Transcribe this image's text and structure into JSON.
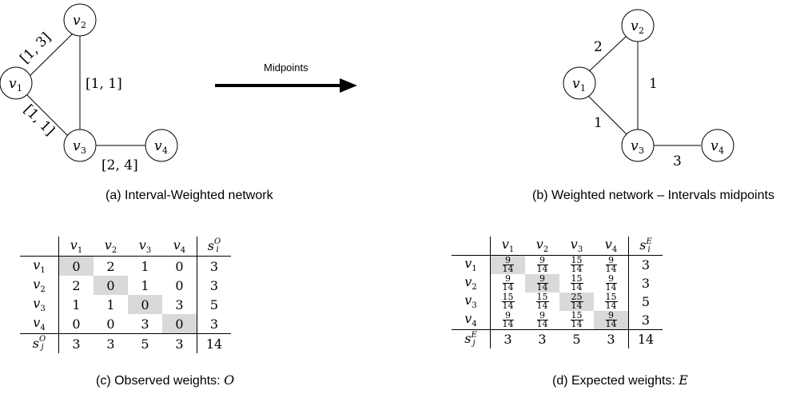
{
  "panel_a": {
    "nodes": [
      {
        "id": "v1",
        "label": "v",
        "sub": "1"
      },
      {
        "id": "v2",
        "label": "v",
        "sub": "2"
      },
      {
        "id": "v3",
        "label": "v",
        "sub": "3"
      },
      {
        "id": "v4",
        "label": "v",
        "sub": "4"
      }
    ],
    "edges": [
      {
        "from": "v1",
        "to": "v2",
        "label": "[1, 3]"
      },
      {
        "from": "v2",
        "to": "v3",
        "label": "[1, 1]"
      },
      {
        "from": "v1",
        "to": "v3",
        "label": "[1, 1]"
      },
      {
        "from": "v3",
        "to": "v4",
        "label": "[2, 4]"
      }
    ],
    "caption": "(a) Interval-Weighted network"
  },
  "arrow": {
    "label": "Midpoints"
  },
  "panel_b": {
    "nodes": [
      {
        "id": "v1",
        "label": "v",
        "sub": "1"
      },
      {
        "id": "v2",
        "label": "v",
        "sub": "2"
      },
      {
        "id": "v3",
        "label": "v",
        "sub": "3"
      },
      {
        "id": "v4",
        "label": "v",
        "sub": "4"
      }
    ],
    "edges": [
      {
        "from": "v1",
        "to": "v2",
        "label": "2"
      },
      {
        "from": "v2",
        "to": "v3",
        "label": "1"
      },
      {
        "from": "v1",
        "to": "v3",
        "label": "1"
      },
      {
        "from": "v3",
        "to": "v4",
        "label": "3"
      }
    ],
    "caption": "(b) Weighted network – Intervals midpoints"
  },
  "table_o": {
    "col_headers": [
      "v1",
      "v2",
      "v3",
      "v4"
    ],
    "sum_header": {
      "base": "s",
      "sup": "O",
      "sub": "i"
    },
    "rows": [
      {
        "label": "v1",
        "values": [
          "0",
          "2",
          "1",
          "0"
        ],
        "sum": "3"
      },
      {
        "label": "v2",
        "values": [
          "2",
          "0",
          "1",
          "0"
        ],
        "sum": "3"
      },
      {
        "label": "v3",
        "values": [
          "1",
          "1",
          "0",
          "3"
        ],
        "sum": "5"
      },
      {
        "label": "v4",
        "values": [
          "0",
          "0",
          "3",
          "0"
        ],
        "sum": "3"
      }
    ],
    "sum_row": {
      "label": {
        "base": "s",
        "sup": "O",
        "sub": "j"
      },
      "values": [
        "3",
        "3",
        "5",
        "3"
      ],
      "total": "14"
    },
    "caption_prefix": "(c) Observed weights: ",
    "caption_var": "O"
  },
  "table_e": {
    "col_headers": [
      "v1",
      "v2",
      "v3",
      "v4"
    ],
    "sum_header": {
      "base": "s",
      "sup": "E",
      "sub": "i"
    },
    "rows": [
      {
        "label": "v1",
        "values": [
          [
            "9",
            "14"
          ],
          [
            "9",
            "14"
          ],
          [
            "15",
            "14"
          ],
          [
            "9",
            "14"
          ]
        ],
        "sum": "3"
      },
      {
        "label": "v2",
        "values": [
          [
            "9",
            "14"
          ],
          [
            "9",
            "14"
          ],
          [
            "15",
            "14"
          ],
          [
            "9",
            "14"
          ]
        ],
        "sum": "3"
      },
      {
        "label": "v3",
        "values": [
          [
            "15",
            "14"
          ],
          [
            "15",
            "14"
          ],
          [
            "25",
            "14"
          ],
          [
            "15",
            "14"
          ]
        ],
        "sum": "5"
      },
      {
        "label": "v4",
        "values": [
          [
            "9",
            "14"
          ],
          [
            "9",
            "14"
          ],
          [
            "15",
            "14"
          ],
          [
            "9",
            "14"
          ]
        ],
        "sum": "3"
      }
    ],
    "sum_row": {
      "label": {
        "base": "s",
        "sup": "E",
        "sub": "j"
      },
      "values": [
        "3",
        "3",
        "5",
        "3"
      ],
      "total": "14"
    },
    "caption_prefix": "(d) Expected weights: ",
    "caption_var": "E"
  }
}
